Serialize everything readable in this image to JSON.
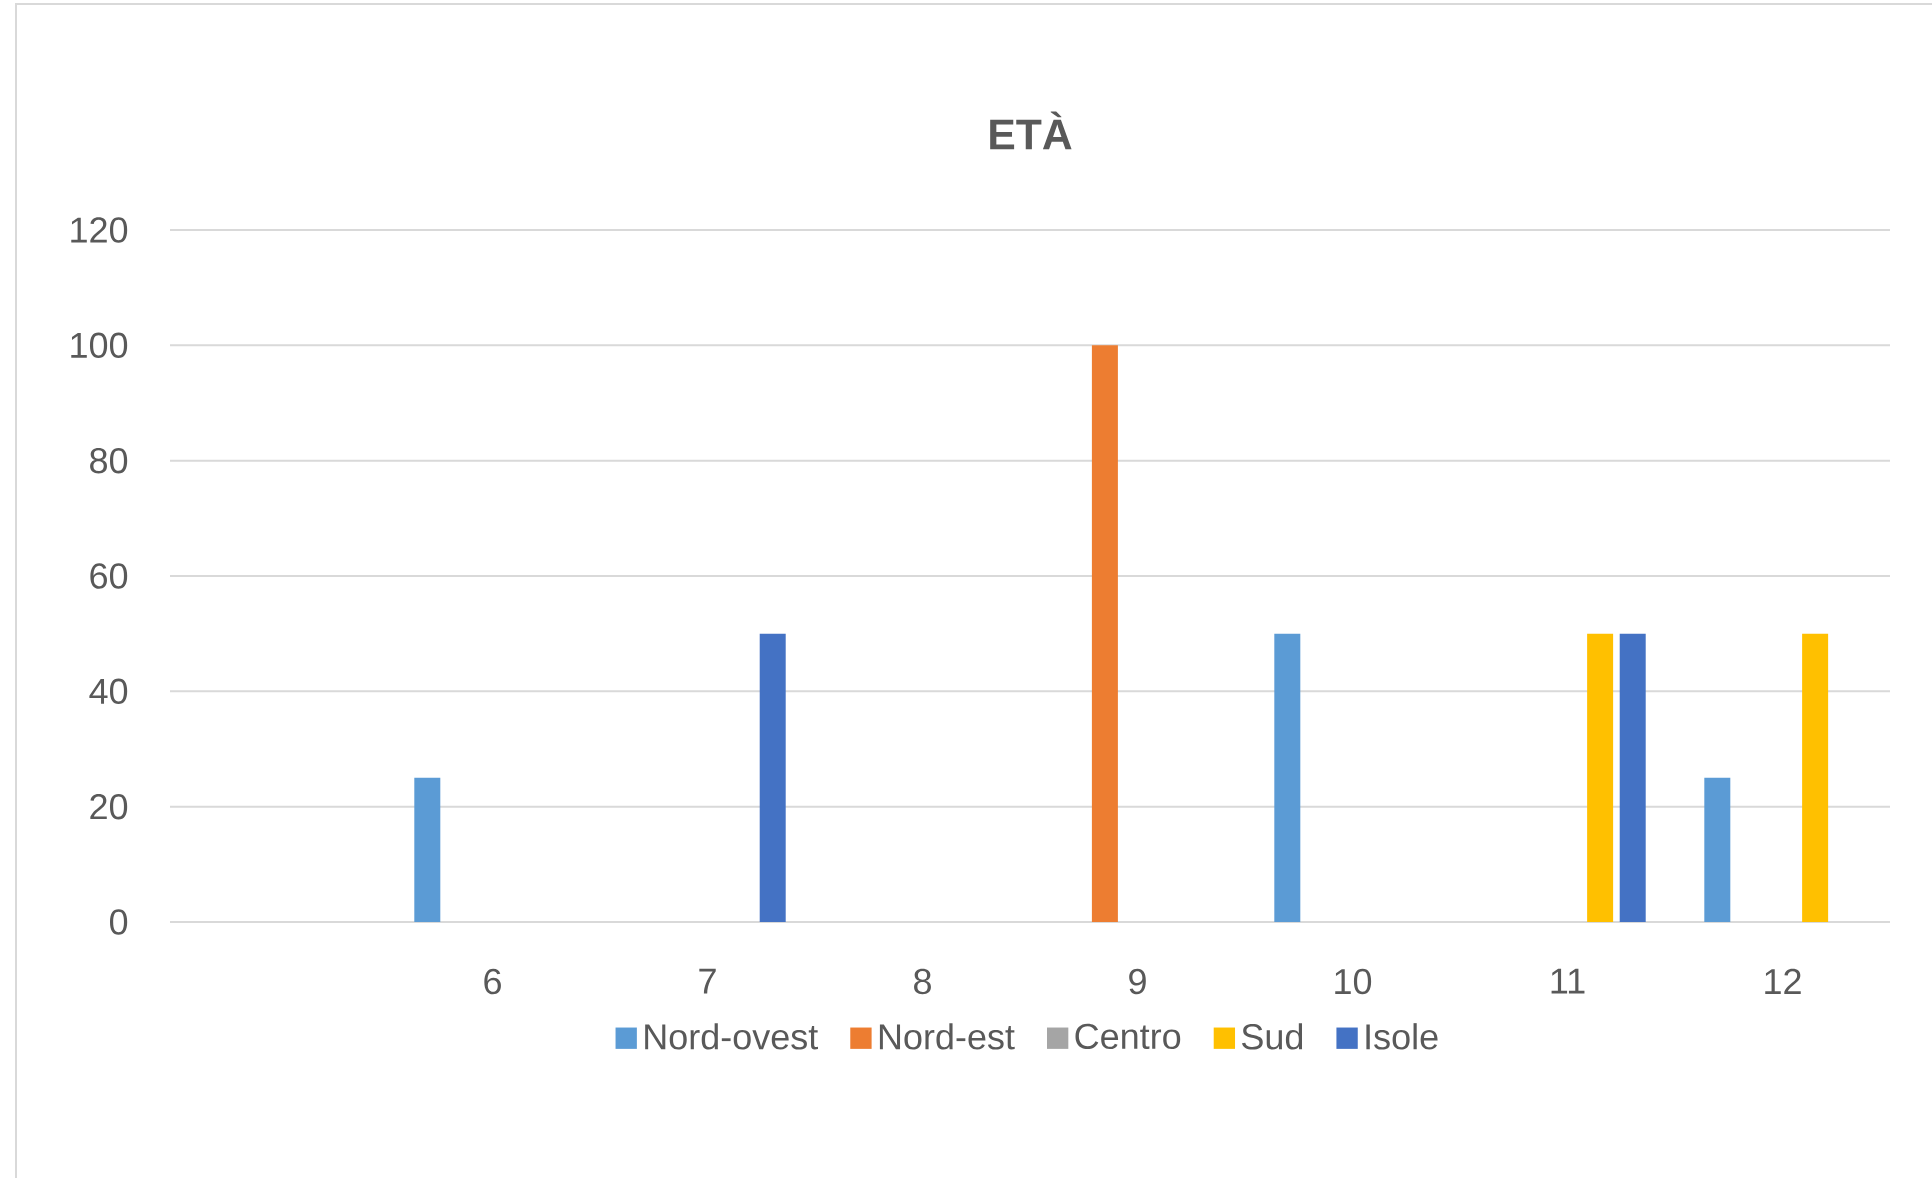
{
  "chart_data": {
    "type": "bar",
    "title": "ETÀ",
    "categories": [
      null,
      "6",
      "7",
      "8",
      "9",
      "10",
      "11",
      "12"
    ],
    "series": [
      {
        "name": "Nord-ovest",
        "color": "#5b9bd5",
        "values": [
          0,
          25,
          0,
          0,
          0,
          50,
          0,
          25
        ]
      },
      {
        "name": "Nord-est",
        "color": "#ed7d31",
        "values": [
          0,
          0,
          0,
          0,
          100,
          0,
          0,
          0
        ]
      },
      {
        "name": "Centro",
        "color": "#a5a5a5",
        "values": [
          0,
          0,
          0,
          0,
          0,
          0,
          0,
          0
        ]
      },
      {
        "name": "Sud",
        "color": "#ffc000",
        "values": [
          0,
          0,
          0,
          0,
          0,
          0,
          50,
          50
        ]
      },
      {
        "name": "Isole",
        "color": "#4472c4",
        "values": [
          0,
          0,
          50,
          0,
          0,
          0,
          50,
          0
        ]
      }
    ],
    "ylim": [
      0,
      120
    ],
    "yticks": [
      0,
      20,
      40,
      60,
      80,
      100,
      120
    ],
    "grid": "y",
    "legend": "bottom"
  }
}
